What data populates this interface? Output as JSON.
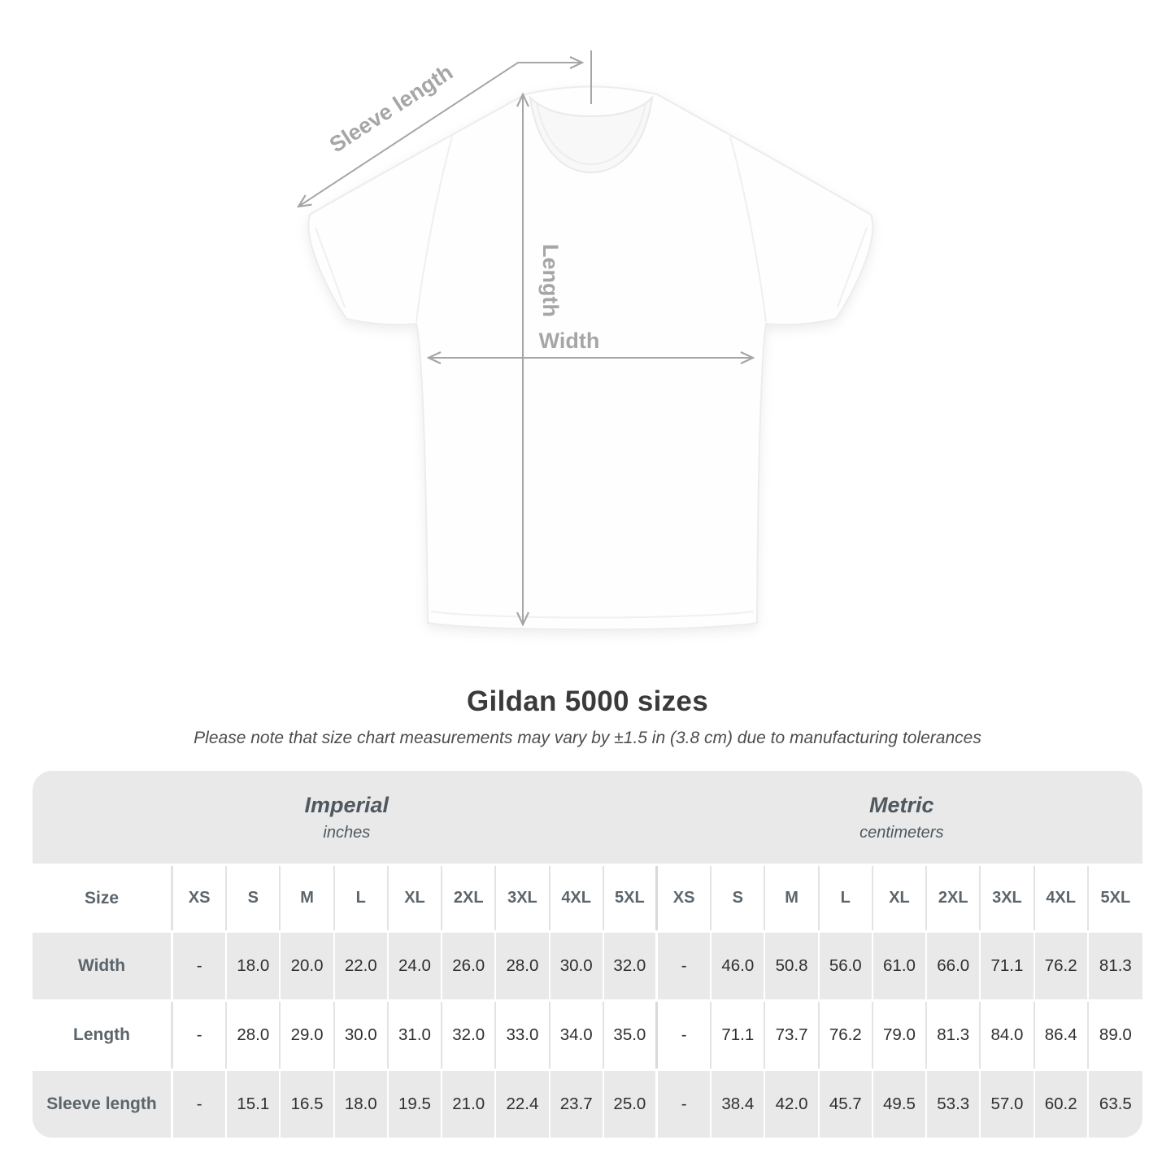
{
  "diagram": {
    "labels": {
      "sleeve_length": "Sleeve length",
      "length": "Length",
      "width": "Width"
    },
    "annotation_color": "#a6a6a6",
    "shirt_color": "#ffffff"
  },
  "title": "Gildan 5000 sizes",
  "subtitle": "Please note that size chart measurements may vary by ±1.5 in (3.8 cm) due to manufacturing tolerances",
  "table": {
    "size_label": "Size",
    "unit_groups": [
      {
        "title": "Imperial",
        "subtitle": "inches"
      },
      {
        "title": "Metric",
        "subtitle": "centimeters"
      }
    ],
    "sizes": [
      "XS",
      "S",
      "M",
      "L",
      "XL",
      "2XL",
      "3XL",
      "4XL",
      "5XL"
    ],
    "rows": [
      {
        "label": "Width",
        "imperial": [
          "-",
          "18.0",
          "20.0",
          "22.0",
          "24.0",
          "26.0",
          "28.0",
          "30.0",
          "32.0"
        ],
        "metric": [
          "-",
          "46.0",
          "50.8",
          "56.0",
          "61.0",
          "66.0",
          "71.1",
          "76.2",
          "81.3"
        ]
      },
      {
        "label": "Length",
        "imperial": [
          "-",
          "28.0",
          "29.0",
          "30.0",
          "31.0",
          "32.0",
          "33.0",
          "34.0",
          "35.0"
        ],
        "metric": [
          "-",
          "71.1",
          "73.7",
          "76.2",
          "79.0",
          "81.3",
          "84.0",
          "86.4",
          "89.0"
        ]
      },
      {
        "label": "Sleeve length",
        "imperial": [
          "-",
          "15.1",
          "16.5",
          "18.0",
          "19.5",
          "21.0",
          "22.4",
          "23.7",
          "25.0"
        ],
        "metric": [
          "-",
          "38.4",
          "42.0",
          "45.7",
          "49.5",
          "53.3",
          "57.0",
          "60.2",
          "63.5"
        ]
      }
    ],
    "colors": {
      "band_bg": "#e9e9e9",
      "alt_row_bg": "#e9e9e9",
      "row_bg": "#ffffff",
      "label_text": "#5b656b",
      "value_text": "#2f2f2f"
    }
  }
}
